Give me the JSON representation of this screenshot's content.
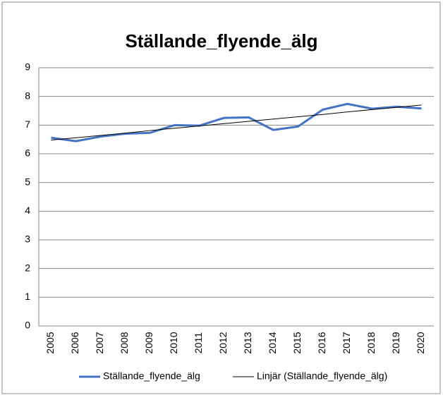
{
  "chart_data": {
    "type": "line",
    "title": "Ställande_flyende_älg",
    "categories": [
      "2005",
      "2006",
      "2007",
      "2008",
      "2009",
      "2010",
      "2011",
      "2012",
      "2013",
      "2014",
      "2015",
      "2016",
      "2017",
      "2018",
      "2019",
      "2020"
    ],
    "series": [
      {
        "name": "Ställande_flyende_älg",
        "color": "#4472c4",
        "width": 3,
        "values": [
          6.56,
          6.44,
          6.6,
          6.7,
          6.73,
          7.0,
          6.98,
          7.25,
          7.27,
          6.83,
          6.95,
          7.54,
          7.74,
          7.57,
          7.64,
          7.58
        ]
      },
      {
        "name": "Linjär (Ställande_flyende_älg)",
        "color": "#000000",
        "width": 1,
        "values": [
          6.48,
          6.56,
          6.64,
          6.72,
          6.81,
          6.89,
          6.97,
          7.05,
          7.13,
          7.21,
          7.29,
          7.37,
          7.46,
          7.54,
          7.62,
          7.7
        ]
      }
    ],
    "ylim": [
      0,
      9
    ],
    "yticks": [
      0,
      1,
      2,
      3,
      4,
      5,
      6,
      7,
      8,
      9
    ],
    "grid": true,
    "legend": "bottom"
  }
}
